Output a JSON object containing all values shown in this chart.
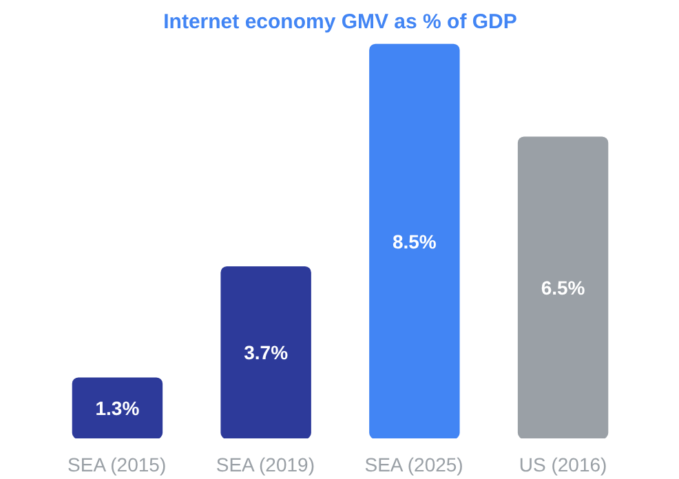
{
  "chart_data": {
    "type": "bar",
    "title": "Internet economy GMV as % of GDP",
    "categories": [
      "SEA (2015)",
      "SEA (2019)",
      "SEA (2025)",
      "US (2016)"
    ],
    "values": [
      1.3,
      3.7,
      8.5,
      6.5
    ],
    "value_labels": [
      "1.3%",
      "3.7%",
      "8.5%",
      "6.5%"
    ],
    "colors": [
      "#2d3a9a",
      "#2d3a9a",
      "#4285f4",
      "#9aa0a6"
    ],
    "grid": false
  }
}
